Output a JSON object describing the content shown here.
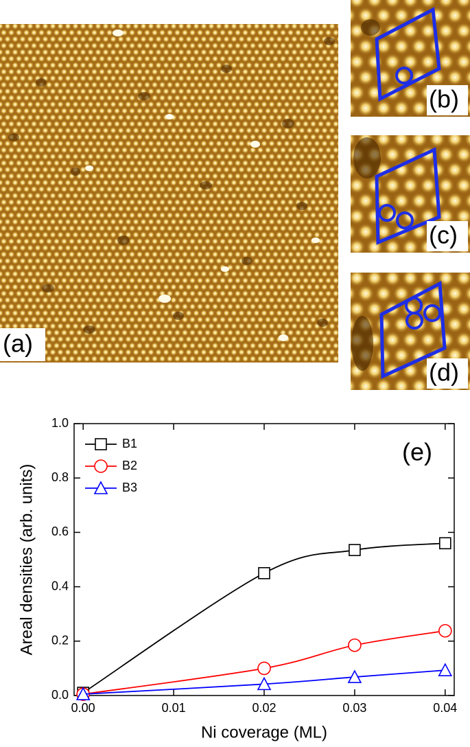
{
  "panels": {
    "a": "(a)",
    "b": "(b)",
    "c": "(c)",
    "d": "(d)"
  },
  "chart_data": {
    "type": "line",
    "annotation": "(e)",
    "x_label": "Ni coverage (ML)",
    "y_label": "Areal densities (arb. units)",
    "x": [
      0,
      0.02,
      0.03,
      0.04
    ],
    "series": [
      {
        "name": "B1",
        "color": "#000000",
        "marker": "square",
        "values": [
          0.01,
          0.45,
          0.535,
          0.56
        ]
      },
      {
        "name": "B2",
        "color": "#ff0000",
        "marker": "circle",
        "values": [
          0.005,
          0.1,
          0.185,
          0.238
        ]
      },
      {
        "name": "B3",
        "color": "#0000ff",
        "marker": "triangle",
        "values": [
          0.005,
          0.042,
          0.068,
          0.093
        ]
      }
    ],
    "xlim": [
      -0.001,
      0.041
    ],
    "ylim": [
      0,
      1
    ],
    "xticks": [
      {
        "value": 0,
        "label": "0.00"
      },
      0.01,
      0.02,
      0.03,
      0.04
    ],
    "yticks": [
      {
        "value": 0,
        "label": "0.0"
      },
      0.2,
      0.4,
      0.6,
      0.8,
      {
        "value": 1,
        "label": "1.0"
      }
    ],
    "legend": "upper left"
  }
}
